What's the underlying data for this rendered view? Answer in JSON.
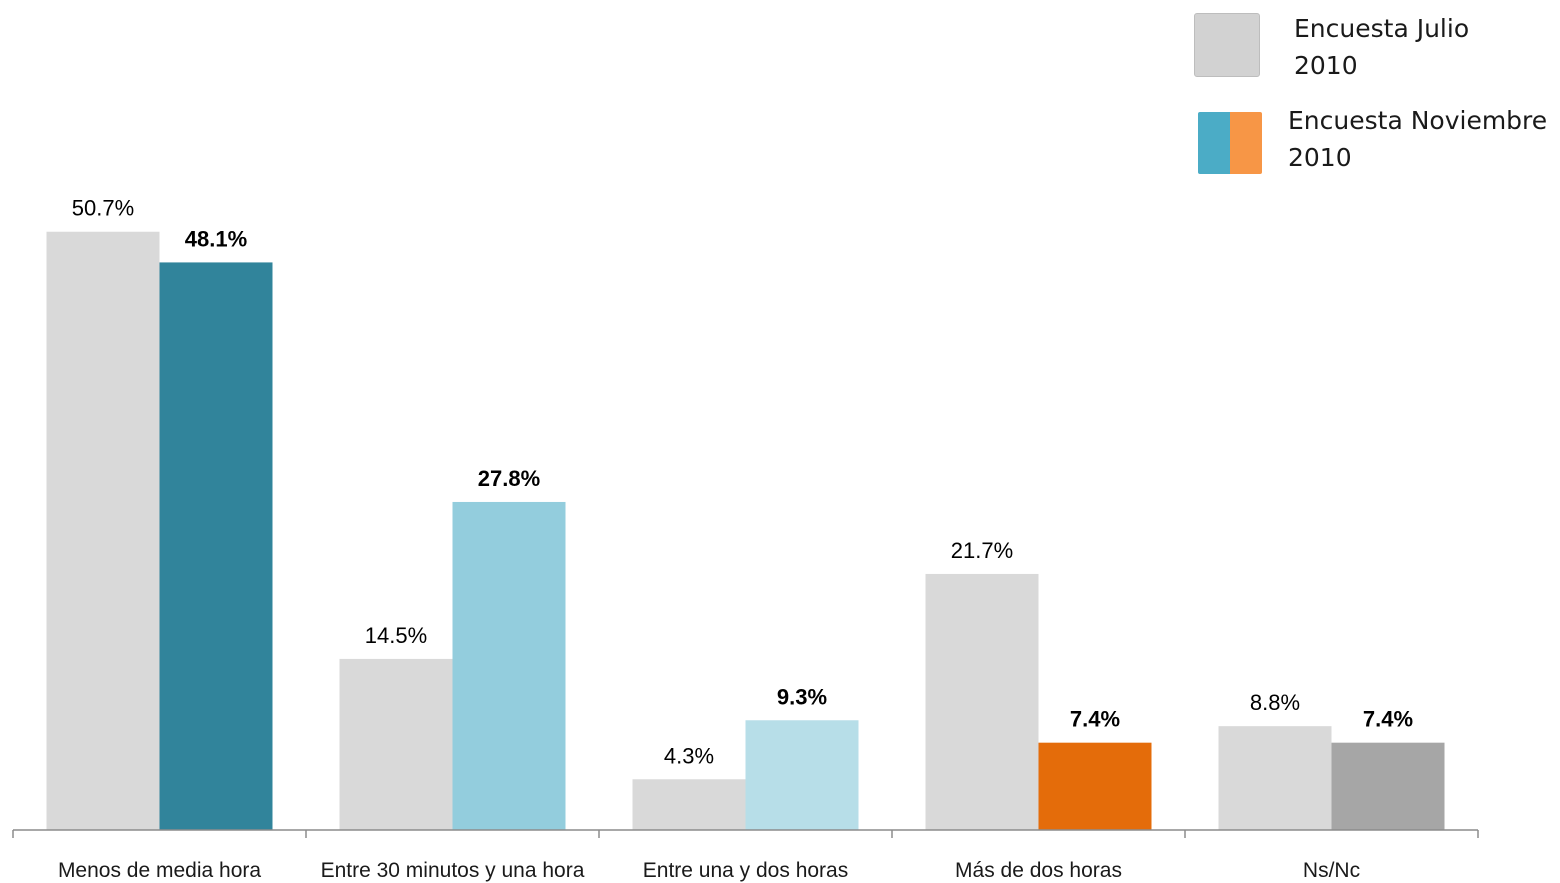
{
  "chart_data": {
    "type": "bar",
    "categories": [
      "Menos de media hora",
      "Entre 30 minutos y una hora",
      "Entre una y dos horas",
      "Más de dos horas",
      "Ns/Nc"
    ],
    "series": [
      {
        "name": "Encuesta Julio 2010",
        "values": [
          50.7,
          14.5,
          4.3,
          21.7,
          8.8
        ],
        "labels": [
          "50.7%",
          "14.5%",
          "4.3%",
          "21.7%",
          "8.8%"
        ],
        "colors": [
          "#d9d9d9",
          "#d9d9d9",
          "#d9d9d9",
          "#d9d9d9",
          "#d9d9d9"
        ]
      },
      {
        "name": "Encuesta Noviembre 2010",
        "values": [
          48.1,
          27.8,
          9.3,
          7.4,
          7.4
        ],
        "labels": [
          "48.1%",
          "27.8%",
          "9.3%",
          "7.4%",
          "7.4%"
        ],
        "colors": [
          "#31849b",
          "#93cddd",
          "#b7dee8",
          "#e46c0a",
          "#a6a6a6"
        ]
      }
    ],
    "ylim": [
      0,
      54
    ],
    "grid": false,
    "legend_position": "top-right"
  },
  "legend": {
    "items": [
      {
        "label": "Encuesta Julio\n2010",
        "colors": [
          "#d2d2d2"
        ]
      },
      {
        "label": "Encuesta Noviembre\n2010",
        "colors": [
          "#4bacc6",
          "#f79646"
        ]
      }
    ]
  }
}
